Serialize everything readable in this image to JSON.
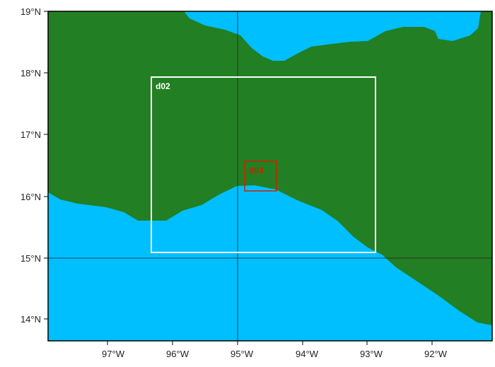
{
  "map": {
    "lat_labels": [
      "19°N",
      "18°N",
      "17°N",
      "16°N",
      "15°N",
      "14°N"
    ],
    "lon_labels": [
      "97°W",
      "96°W",
      "95°W",
      "94°W",
      "93°W",
      "92°W"
    ],
    "domains": {
      "d02": {
        "label": "d02"
      },
      "d03": {
        "label": "d03"
      }
    },
    "colors": {
      "land": "#237f23",
      "ocean": "#00bfff",
      "frame": "#000000",
      "d02_box": "#ffffff",
      "d03_box": "#cc2200"
    }
  }
}
